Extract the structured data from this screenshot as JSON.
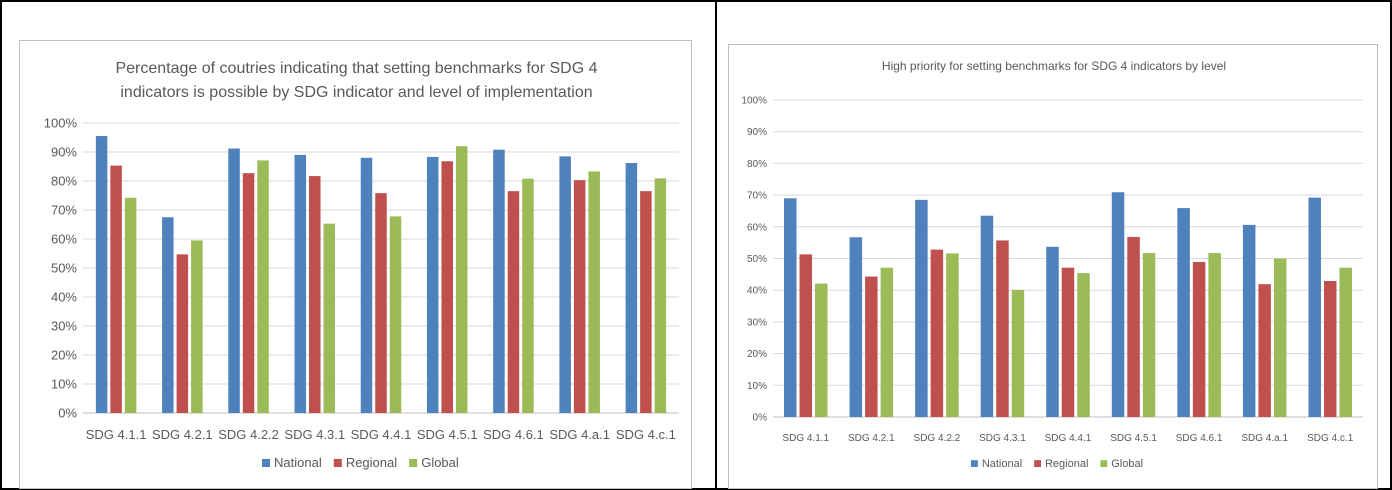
{
  "colors": {
    "National": "#4f81bd",
    "Regional": "#c0504d",
    "Global": "#9bbb59",
    "grid": "#d9d9d9",
    "text": "#595959"
  },
  "chart_data": [
    {
      "type": "bar",
      "title_lines": [
        "Percentage of coutries indicating that setting benchmarks for SDG 4",
        "indicators is possible by SDG indicator and level of implementation"
      ],
      "categories": [
        "SDG 4.1.1",
        "SDG 4.2.1",
        "SDG 4.2.2",
        "SDG 4.3.1",
        "SDG 4.4.1",
        "SDG 4.5.1",
        "SDG 4.6.1",
        "SDG 4.a.1",
        "SDG 4.c.1"
      ],
      "ylim": [
        0,
        100
      ],
      "yticks": [
        "0%",
        "10%",
        "20%",
        "30%",
        "40%",
        "50%",
        "60%",
        "70%",
        "80%",
        "90%",
        "100%"
      ],
      "grid": true,
      "legend": "bottom",
      "series": [
        {
          "name": "National",
          "values": [
            95.5,
            67.5,
            91.2,
            89,
            88,
            88.3,
            90.8,
            88.5,
            86.2
          ]
        },
        {
          "name": "Regional",
          "values": [
            85.3,
            54.7,
            82.7,
            81.7,
            75.8,
            86.8,
            76.5,
            80.3,
            76.5
          ]
        },
        {
          "name": "Global",
          "values": [
            74.2,
            59.5,
            87.1,
            65.3,
            67.8,
            92,
            80.8,
            83.3,
            80.9
          ]
        }
      ]
    },
    {
      "type": "bar",
      "title_lines": [
        "High priority for setting benchmarks for SDG 4 indicators by level"
      ],
      "categories": [
        "SDG 4.1.1",
        "SDG 4.2.1",
        "SDG 4.2.2",
        "SDG 4.3.1",
        "SDG 4.4.1",
        "SDG 4.5.1",
        "SDG 4.6.1",
        "SDG 4.a.1",
        "SDG 4.c.1"
      ],
      "ylim": [
        0,
        100
      ],
      "yticks": [
        "0%",
        "10%",
        "20%",
        "30%",
        "40%",
        "50%",
        "60%",
        "70%",
        "80%",
        "90%",
        "100%"
      ],
      "grid": true,
      "legend": "bottom",
      "series": [
        {
          "name": "National",
          "values": [
            69,
            56.7,
            68.5,
            63.5,
            53.7,
            70.9,
            65.9,
            60.6,
            69.2
          ]
        },
        {
          "name": "Regional",
          "values": [
            51.3,
            44.3,
            52.8,
            55.7,
            47.1,
            56.8,
            48.9,
            41.9,
            42.9
          ]
        },
        {
          "name": "Global",
          "values": [
            42.1,
            47.1,
            51.6,
            40.1,
            45.4,
            51.7,
            51.7,
            50,
            47.1
          ]
        }
      ]
    }
  ]
}
